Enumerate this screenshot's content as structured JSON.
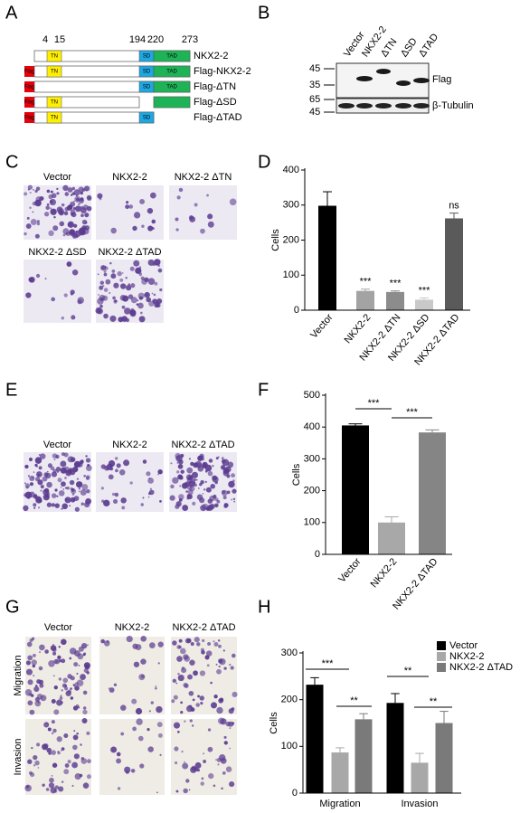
{
  "panels": {
    "letters": [
      "A",
      "B",
      "C",
      "D",
      "E",
      "F",
      "G",
      "H"
    ]
  },
  "construct": {
    "positions": [
      "4",
      "15",
      "194",
      "220",
      "273"
    ],
    "domains": [
      "TN",
      "SD",
      "TAD"
    ],
    "tag": "Flag",
    "rows": [
      "NKX2-2",
      "Flag-NKX2-2",
      "Flag-ΔTN",
      "Flag-ΔSD",
      "Flag-ΔTAD"
    ]
  },
  "blot": {
    "lanes": [
      "Vector",
      "NKX2-2",
      "ΔTN",
      "ΔSD",
      "ΔTAD"
    ],
    "markers": [
      "45",
      "35",
      "65",
      "45"
    ],
    "bands": [
      "Flag",
      "β-Tubulin"
    ]
  },
  "micrographs": {
    "c": [
      "Vector",
      "NKX2-2",
      "NKX2-2 ΔTN",
      "NKX2-2 ΔSD",
      "NKX2-2 ΔTAD"
    ],
    "e": [
      "Vector",
      "NKX2-2",
      "NKX2-2 ΔTAD"
    ],
    "g": {
      "columns": [
        "Vector",
        "NKX2-2",
        "NKX2-2 ΔTAD"
      ],
      "rows": [
        "Migration",
        "Invasion"
      ]
    }
  },
  "chart_data": [
    {
      "type": "bar",
      "y_label": "Cells",
      "categories": [
        "Vector",
        "NKX2-2",
        "NKX2-2 ΔTN",
        "NKX2-2 ΔSD",
        "NKX2-2 ΔTAD"
      ],
      "values": [
        298,
        55,
        52,
        30,
        262
      ],
      "errors": [
        40,
        5,
        3,
        5,
        15
      ],
      "colors": [
        "#000000",
        "#a3a3a3",
        "#8c8c8c",
        "#c9c9c9",
        "#5a5a5a"
      ],
      "annotations": [
        "***",
        "***",
        "***",
        "ns"
      ],
      "ylim": [
        0,
        400
      ],
      "yticks": [
        0,
        100,
        200,
        300,
        400
      ]
    },
    {
      "type": "bar",
      "y_label": "Cells",
      "categories": [
        "Vector",
        "NKX2-2",
        "NKX2-2 ΔTAD"
      ],
      "values": [
        405,
        100,
        383
      ],
      "errors": [
        5,
        18,
        8
      ],
      "colors": [
        "#000000",
        "#a8a8a8",
        "#858585"
      ],
      "annotations": [
        "***",
        "***"
      ],
      "ylim": [
        0,
        500
      ],
      "yticks": [
        0,
        100,
        200,
        300,
        400,
        500
      ]
    },
    {
      "type": "grouped-bar",
      "y_label": "Cells",
      "categories": [
        "Migration",
        "Invasion"
      ],
      "series": [
        {
          "name": "Vector",
          "color": "#000000",
          "values": [
            232,
            193
          ],
          "errors": [
            15,
            20
          ]
        },
        {
          "name": "NKX2-2",
          "color": "#a8a8a8",
          "values": [
            87,
            65
          ],
          "errors": [
            10,
            20
          ]
        },
        {
          "name": "NKX2-2 ΔTAD",
          "color": "#7a7a7a",
          "values": [
            158,
            150
          ],
          "errors": [
            12,
            25
          ]
        }
      ],
      "annotations": [
        "***",
        "**",
        "**",
        "**"
      ],
      "ylim": [
        0,
        300
      ],
      "yticks": [
        0,
        100,
        200,
        300
      ]
    }
  ]
}
